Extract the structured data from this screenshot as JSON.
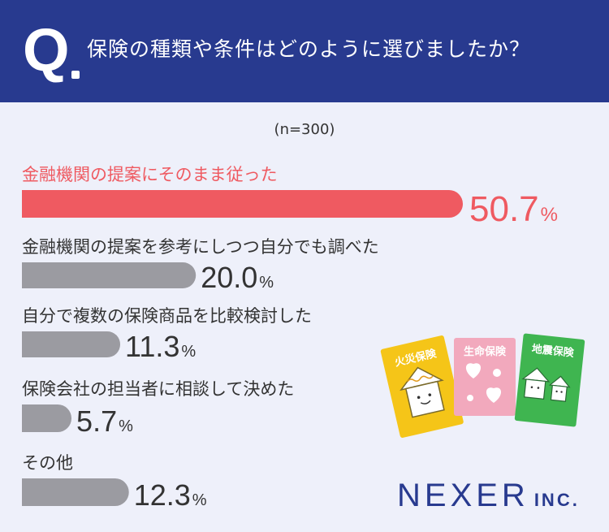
{
  "header": {
    "q_letter": "Q",
    "question": "保険の種類や条件はどのように選びましたか？"
  },
  "sample_size": "(n=300)",
  "chart_data": {
    "type": "bar",
    "orientation": "horizontal",
    "categories": [
      "金融機関の提案にそのまま従った",
      "金融機関の提案を参考にしつつ自分でも調べた",
      "自分で複数の保険商品を比較検討した",
      "保険会社の担当者に相談して決めた",
      "その他"
    ],
    "values": [
      50.7,
      20.0,
      11.3,
      5.7,
      12.3
    ],
    "value_labels": [
      "50.7",
      "20.0",
      "11.3",
      "5.7",
      "12.3"
    ],
    "unit": "%",
    "highlight_index": 0,
    "colors": {
      "highlight": "#ef5a61",
      "default": "#9b9ba1"
    }
  },
  "illustration": {
    "cards": [
      {
        "label": "火災保険",
        "color": "#f5c518",
        "icon": "house-icon"
      },
      {
        "label": "生命保険",
        "color": "#f2a9bd",
        "icon": "heart-icon"
      },
      {
        "label": "地震保険",
        "color": "#3fb550",
        "icon": "houses-icon"
      }
    ]
  },
  "logo": {
    "main": "NEXER",
    "sub": "INC."
  },
  "colors": {
    "header_bg": "#283a8f",
    "page_bg": "#eef0fa",
    "text": "#333333"
  }
}
